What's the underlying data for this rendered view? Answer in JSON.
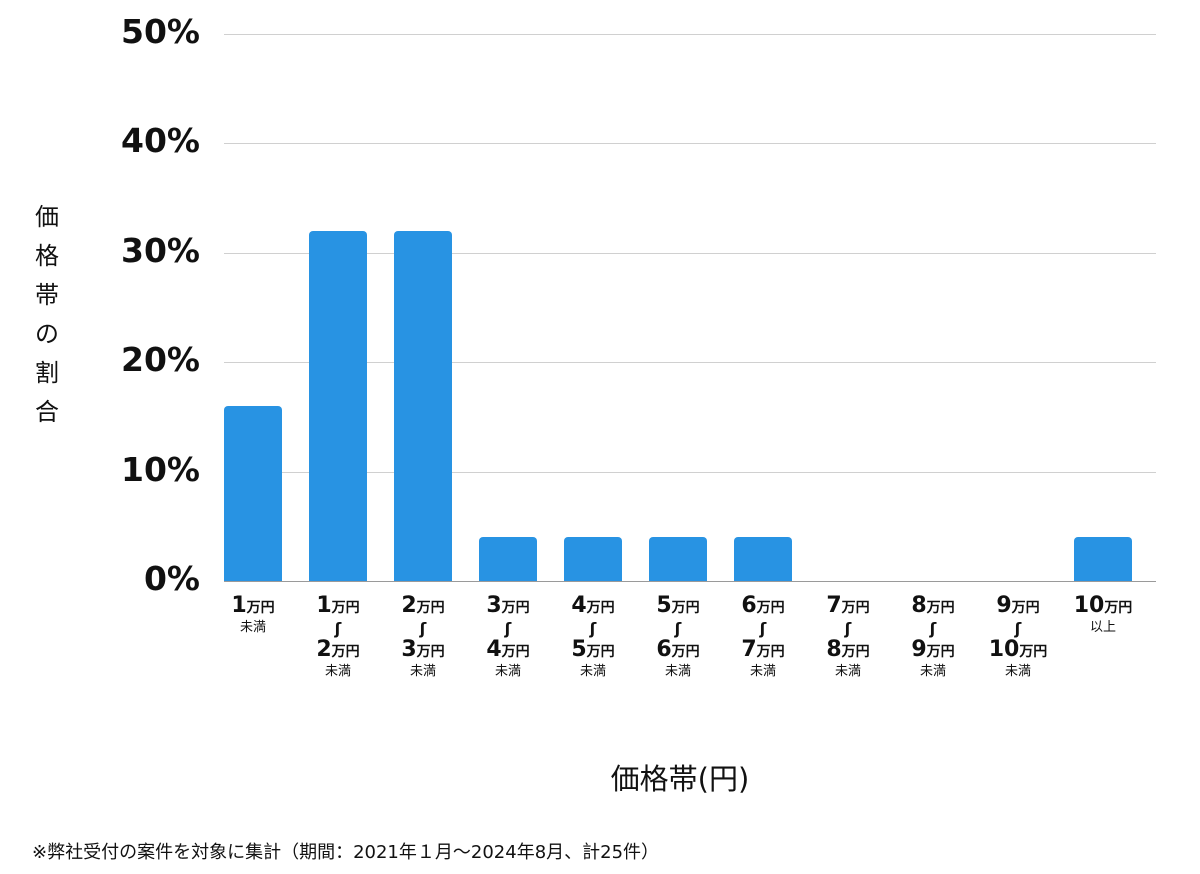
{
  "chart_data": {
    "type": "bar",
    "title": "",
    "xlabel": "価格帯(円)",
    "ylabel": "価格帯の割合",
    "ylim": [
      0,
      50
    ],
    "yticks": [
      "0%",
      "10%",
      "20%",
      "30%",
      "40%",
      "50%"
    ],
    "grid": true,
    "legend": null,
    "bar_color": "#2893e3",
    "categories": [
      "1万円未満",
      "1万円〜2万円未満",
      "2万円〜3万円未満",
      "3万円〜4万円未満",
      "4万円〜5万円未満",
      "5万円〜6万円未満",
      "6万円〜7万円未満",
      "7万円〜8万円未満",
      "8万円〜9万円未満",
      "9万円〜10万円未満",
      "10万円以上"
    ],
    "values": [
      16,
      32,
      32,
      4,
      4,
      4,
      4,
      0,
      0,
      0,
      4
    ],
    "note": "※弊社受付の案件を対象に集計（期間：2021年１月〜2024年8月、計25件）"
  },
  "labels": {
    "ylabel": "価格帯の割合",
    "xlabel": "価格帯(円)",
    "note": "※弊社受付の案件を対象に集計（期間：2021年１月〜2024年8月、計25件）",
    "yticks": [
      "50%",
      "40%",
      "30%",
      "20%",
      "10%",
      "0%"
    ],
    "xcats": [
      {
        "from": "1",
        "to": "",
        "suffix": "未満"
      },
      {
        "from": "1",
        "to": "2",
        "suffix": "未満"
      },
      {
        "from": "2",
        "to": "3",
        "suffix": "未満"
      },
      {
        "from": "3",
        "to": "4",
        "suffix": "未満"
      },
      {
        "from": "4",
        "to": "5",
        "suffix": "未満"
      },
      {
        "from": "5",
        "to": "6",
        "suffix": "未満"
      },
      {
        "from": "6",
        "to": "7",
        "suffix": "未満"
      },
      {
        "from": "7",
        "to": "8",
        "suffix": "未満"
      },
      {
        "from": "8",
        "to": "9",
        "suffix": "未満"
      },
      {
        "from": "9",
        "to": "10",
        "suffix": "未満"
      },
      {
        "from": "10",
        "to": "",
        "suffix": "以上"
      }
    ],
    "unit": "万円",
    "tilde": "ʃ"
  }
}
